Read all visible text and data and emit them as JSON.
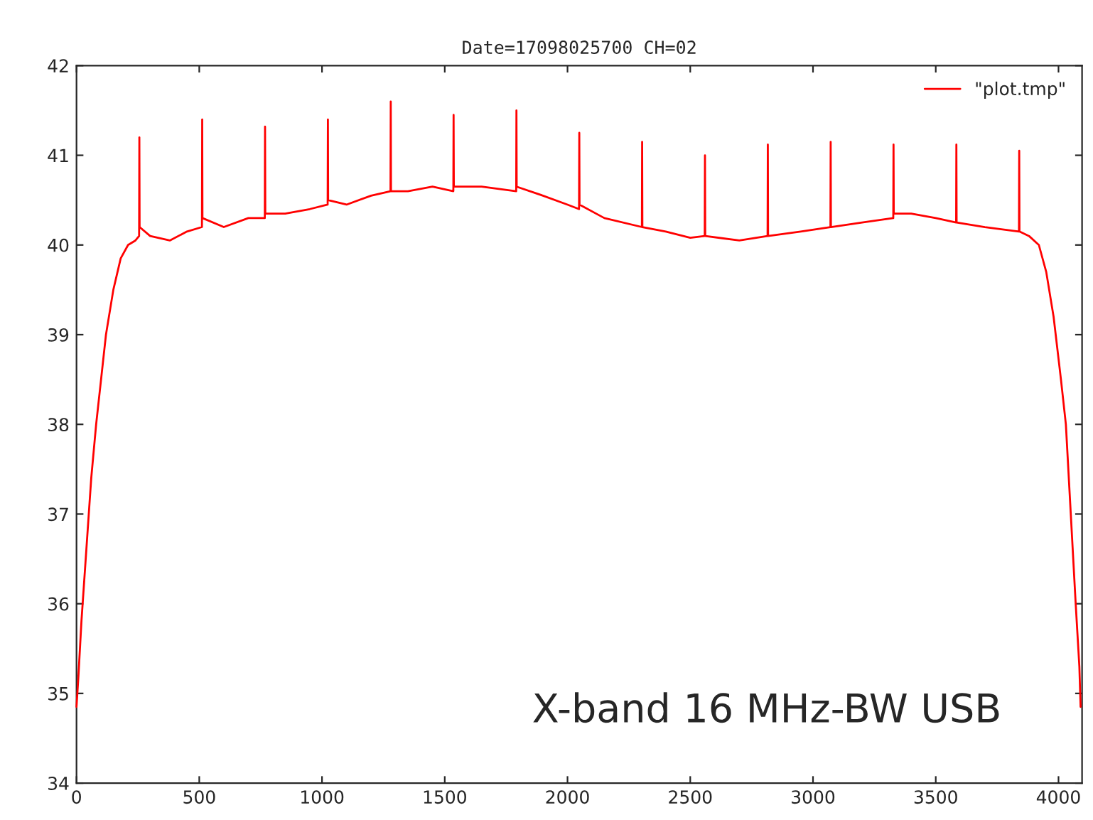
{
  "chart_data": {
    "type": "line",
    "title": "Date=17098025700 CH=02",
    "annotations": [
      "X-band 16 MHz-BW USB"
    ],
    "series": [
      {
        "name": "\"plot.tmp\"",
        "color": "#ff0000",
        "x": [
          0,
          8,
          20,
          40,
          60,
          80,
          100,
          120,
          150,
          180,
          210,
          240,
          255,
          256,
          257,
          300,
          380,
          450,
          511,
          512,
          513,
          600,
          700,
          767,
          768,
          769,
          850,
          950,
          1023,
          1024,
          1025,
          1100,
          1200,
          1279,
          1280,
          1281,
          1350,
          1450,
          1535,
          1536,
          1537,
          1650,
          1791,
          1792,
          1793,
          1900,
          2000,
          2047,
          2048,
          2049,
          2150,
          2303,
          2304,
          2305,
          2400,
          2500,
          2559,
          2560,
          2561,
          2700,
          2815,
          2816,
          2817,
          2950,
          3071,
          3072,
          3073,
          3200,
          3327,
          3328,
          3329,
          3400,
          3500,
          3583,
          3584,
          3585,
          3700,
          3839,
          3840,
          3841,
          3880,
          3920,
          3950,
          3980,
          4010,
          4030,
          4050,
          4070,
          4085,
          4090
        ],
        "values": [
          34.85,
          35.2,
          35.8,
          36.6,
          37.4,
          38.0,
          38.5,
          39.0,
          39.5,
          39.85,
          40.0,
          40.05,
          40.1,
          41.2,
          40.2,
          40.1,
          40.05,
          40.15,
          40.2,
          41.4,
          40.3,
          40.2,
          40.3,
          40.3,
          41.32,
          40.35,
          40.35,
          40.4,
          40.45,
          41.4,
          40.5,
          40.45,
          40.55,
          40.6,
          41.6,
          40.6,
          40.6,
          40.65,
          40.6,
          41.45,
          40.65,
          40.65,
          40.6,
          41.5,
          40.65,
          40.55,
          40.45,
          40.4,
          41.25,
          40.45,
          40.3,
          40.2,
          41.15,
          40.2,
          40.15,
          40.08,
          40.1,
          41.0,
          40.1,
          40.05,
          40.1,
          41.12,
          40.1,
          40.15,
          40.2,
          41.15,
          40.2,
          40.25,
          40.3,
          41.12,
          40.35,
          40.35,
          40.3,
          40.25,
          41.12,
          40.25,
          40.2,
          40.15,
          41.05,
          40.15,
          40.1,
          40.0,
          39.7,
          39.2,
          38.5,
          38.0,
          37.0,
          36.0,
          35.3,
          34.85
        ]
      }
    ],
    "xlim": [
      0,
      4096
    ],
    "xticks": [
      0,
      500,
      1000,
      1500,
      2000,
      2500,
      3000,
      3500,
      4000
    ],
    "ylim": [
      34,
      42
    ],
    "yticks": [
      34,
      35,
      36,
      37,
      38,
      39,
      40,
      41,
      42
    ],
    "grid": false,
    "legend": "top right",
    "marker": "none",
    "line_style": "solid"
  }
}
